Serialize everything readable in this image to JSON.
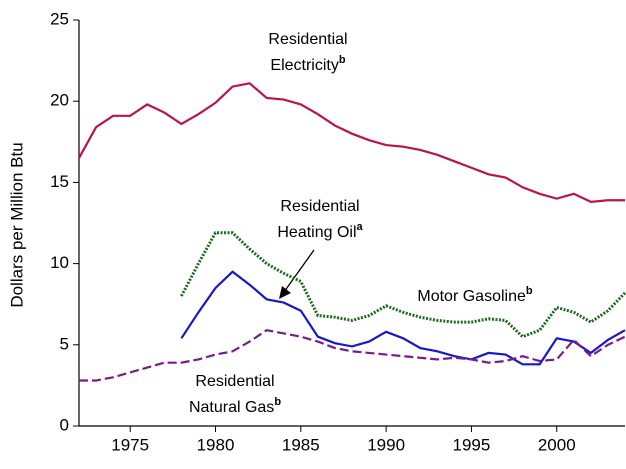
{
  "chart_data": {
    "type": "line",
    "y_label": "Dollars per Million Btu",
    "x": [
      1972,
      1973,
      1974,
      1975,
      1976,
      1977,
      1978,
      1979,
      1980,
      1981,
      1982,
      1983,
      1984,
      1985,
      1986,
      1987,
      1988,
      1989,
      1990,
      1991,
      1992,
      1993,
      1994,
      1995,
      1996,
      1997,
      1998,
      1999,
      2000,
      2001,
      2002,
      2003,
      2004
    ],
    "xlim": [
      1972,
      2004
    ],
    "xticks": [
      1975,
      1980,
      1985,
      1990,
      1995,
      2000
    ],
    "ylim": [
      0,
      25
    ],
    "yticks": [
      0,
      5,
      10,
      15,
      20,
      25
    ],
    "series": [
      {
        "label": [
          "Residential",
          "Electricity"
        ],
        "note": "b",
        "color": "#b8144e",
        "dash": "solid",
        "values": [
          16.5,
          18.4,
          19.1,
          19.1,
          19.8,
          19.3,
          18.6,
          19.2,
          19.9,
          20.9,
          21.1,
          20.2,
          20.1,
          19.8,
          19.2,
          18.5,
          18.0,
          17.6,
          17.3,
          17.2,
          17.0,
          16.7,
          16.3,
          15.9,
          15.5,
          15.3,
          14.7,
          14.3,
          14.0,
          14.3,
          13.8,
          13.9,
          13.9
        ]
      },
      {
        "label": [
          "Residential",
          "Heating Oil"
        ],
        "note": "a",
        "color": "#1818c8",
        "dash": "solid",
        "values": [
          null,
          null,
          null,
          null,
          null,
          null,
          5.4,
          7.0,
          8.5,
          9.5,
          8.7,
          7.8,
          7.6,
          7.1,
          5.5,
          5.1,
          4.9,
          5.2,
          5.8,
          5.4,
          4.8,
          4.6,
          4.3,
          4.1,
          4.5,
          4.4,
          3.8,
          3.8,
          5.4,
          5.2,
          4.5,
          5.3,
          5.9
        ]
      },
      {
        "label": [
          "Motor Gasoline"
        ],
        "note": "b",
        "color": "#1a6b1a",
        "dash": "dotted",
        "values": [
          null,
          null,
          null,
          null,
          null,
          null,
          8.0,
          10.0,
          11.9,
          11.9,
          10.9,
          10.0,
          9.4,
          8.9,
          6.8,
          6.7,
          6.5,
          6.8,
          7.4,
          7.0,
          6.7,
          6.5,
          6.4,
          6.4,
          6.6,
          6.5,
          5.5,
          5.9,
          7.3,
          7.0,
          6.4,
          7.1,
          8.2
        ]
      },
      {
        "label": [
          "Residential",
          "Natural Gas"
        ],
        "note": "b",
        "color": "#7a1a8c",
        "dash": "dashed",
        "values": [
          2.8,
          2.8,
          3.0,
          3.3,
          3.6,
          3.9,
          3.9,
          4.1,
          4.4,
          4.6,
          5.2,
          5.9,
          5.7,
          5.5,
          5.2,
          4.8,
          4.6,
          4.5,
          4.4,
          4.3,
          4.2,
          4.1,
          4.2,
          4.1,
          3.9,
          4.0,
          4.3,
          4.0,
          4.1,
          5.3,
          4.3,
          5.0,
          5.5
        ]
      }
    ]
  }
}
